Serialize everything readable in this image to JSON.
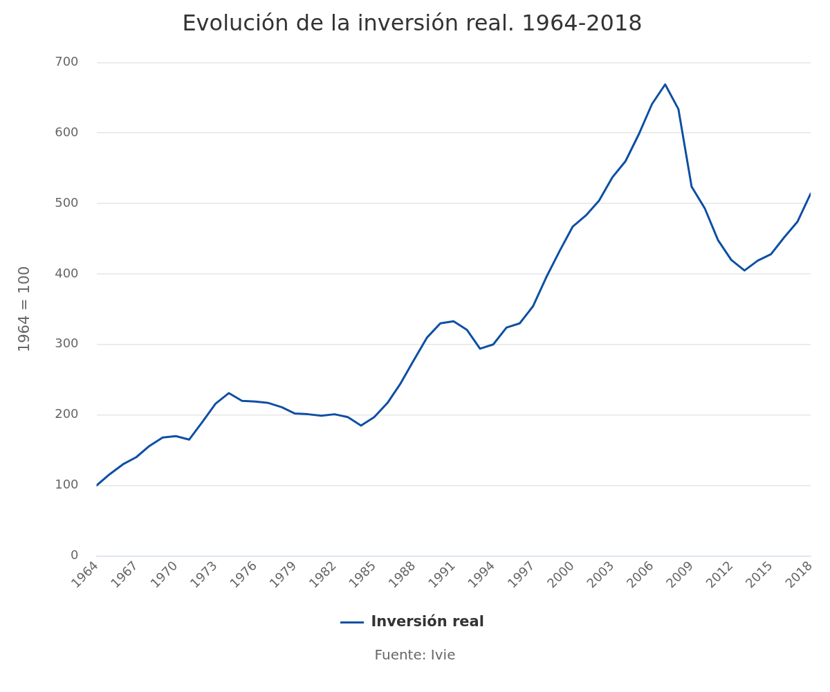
{
  "chart_data": {
    "type": "line",
    "title": "Evolución de la inversión real. 1964-2018",
    "ylabel": "1964 = 100",
    "annotations": [
      "Fuente: Ivie"
    ],
    "x": [
      1964,
      1965,
      1966,
      1967,
      1968,
      1969,
      1970,
      1971,
      1972,
      1973,
      1974,
      1975,
      1976,
      1977,
      1978,
      1979,
      1980,
      1981,
      1982,
      1983,
      1984,
      1985,
      1986,
      1987,
      1988,
      1989,
      1990,
      1991,
      1992,
      1993,
      1994,
      1995,
      1996,
      1997,
      1998,
      1999,
      2000,
      2001,
      2002,
      2003,
      2004,
      2005,
      2006,
      2007,
      2008,
      2009,
      2010,
      2011,
      2012,
      2013,
      2014,
      2015,
      2016,
      2017,
      2018
    ],
    "series": [
      {
        "name": "Inversión real",
        "color": "#0d4fa3",
        "values": [
          100,
          116,
          130,
          140,
          156,
          168,
          170,
          165,
          190,
          216,
          231,
          220,
          219,
          217,
          211,
          202,
          201,
          199,
          201,
          197,
          185,
          197,
          217,
          245,
          278,
          310,
          330,
          333,
          321,
          294,
          300,
          324,
          330,
          354,
          395,
          432,
          467,
          483,
          504,
          537,
          560,
          598,
          641,
          669,
          634,
          524,
          493,
          448,
          420,
          405,
          419,
          428,
          452,
          474,
          514
        ]
      }
    ],
    "xlim": [
      1964,
      2018
    ],
    "xticks": [
      1964,
      1967,
      1970,
      1973,
      1976,
      1979,
      1982,
      1985,
      1988,
      1991,
      1994,
      1997,
      2000,
      2003,
      2006,
      2009,
      2012,
      2015,
      2018
    ],
    "ylim": [
      0,
      700
    ],
    "yticks": [
      0,
      100,
      200,
      300,
      400,
      500,
      600,
      700
    ],
    "grid": "y",
    "legend": "bottom",
    "marker": "none",
    "line_style": "solid"
  }
}
